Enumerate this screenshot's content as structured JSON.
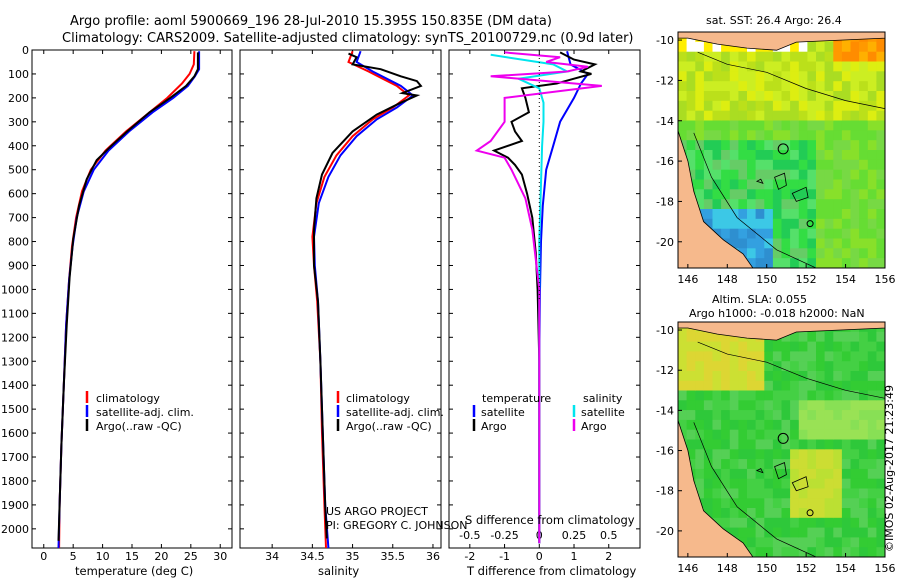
{
  "header": {
    "title_line1": "Argo profile: aoml 5900669_196 28-Jul-2010 15.395S 150.835E (DM data)",
    "title_line2": "Climatology: CARS2009. Satellite-adjusted climatology: synTS_20100729.nc (0.9d later)"
  },
  "credits": {
    "project": "US ARGO PROJECT",
    "pi": "PI: GREGORY C. JOHNSON",
    "imos": "©IMOS 02-Aug-2017 21:23:49"
  },
  "colors": {
    "climatology": "#ff0000",
    "satellite": "#0000ff",
    "argo": "#000000",
    "salinity_satellite": "#00e5ee",
    "salinity_argo": "#ee00ee",
    "land": "#f6b98c"
  },
  "chart_data": [
    {
      "type": "line",
      "name": "temperature-profile",
      "xlabel": "temperature (deg C)",
      "ylabel": "",
      "xlim": [
        -2,
        32
      ],
      "ylim": [
        2080,
        0
      ],
      "xticks": [
        "0",
        "5",
        "10",
        "15",
        "20",
        "25",
        "30"
      ],
      "xtick_values": [
        0,
        5,
        10,
        15,
        20,
        25,
        30
      ],
      "yticks": [
        "0",
        "100",
        "200",
        "300",
        "400",
        "500",
        "600",
        "700",
        "800",
        "900",
        "1000",
        "1100",
        "1200",
        "1300",
        "1400",
        "1500",
        "1600",
        "1700",
        "1800",
        "1900",
        "2000"
      ],
      "ytick_values": [
        0,
        100,
        200,
        300,
        400,
        500,
        600,
        700,
        800,
        900,
        1000,
        1100,
        1200,
        1300,
        1400,
        1500,
        1600,
        1700,
        1800,
        1900,
        2000
      ],
      "legend": [
        "climatology",
        "satellite-adj. clim.",
        "Argo(..raw -QC)"
      ],
      "series": [
        {
          "name": "climatology",
          "color": "#ff0000",
          "points": [
            [
              25.6,
              5
            ],
            [
              25.5,
              60
            ],
            [
              24.8,
              100
            ],
            [
              23.5,
              140
            ],
            [
              21.0,
              200
            ],
            [
              17.5,
              270
            ],
            [
              14.0,
              340
            ],
            [
              10.5,
              420
            ],
            [
              8.0,
              500
            ],
            [
              6.5,
              590
            ],
            [
              5.5,
              700
            ],
            [
              4.8,
              820
            ],
            [
              4.3,
              960
            ],
            [
              3.8,
              1150
            ],
            [
              3.4,
              1400
            ],
            [
              3.0,
              1650
            ],
            [
              2.7,
              1900
            ],
            [
              2.6,
              2080
            ]
          ]
        },
        {
          "name": "satellite",
          "color": "#0000ff",
          "points": [
            [
              26.4,
              5
            ],
            [
              26.4,
              80
            ],
            [
              25.7,
              110
            ],
            [
              24.5,
              150
            ],
            [
              22.0,
              200
            ],
            [
              18.5,
              260
            ],
            [
              14.5,
              340
            ],
            [
              11.0,
              420
            ],
            [
              8.5,
              500
            ],
            [
              6.8,
              590
            ],
            [
              5.6,
              700
            ],
            [
              4.9,
              820
            ],
            [
              4.3,
              960
            ],
            [
              3.8,
              1150
            ],
            [
              3.4,
              1400
            ],
            [
              3.0,
              1650
            ],
            [
              2.7,
              1900
            ],
            [
              2.5,
              2080
            ]
          ]
        },
        {
          "name": "argo",
          "color": "#000000",
          "points": [
            [
              26.2,
              10
            ],
            [
              26.2,
              80
            ],
            [
              25.6,
              110
            ],
            [
              24.2,
              150
            ],
            [
              21.5,
              200
            ],
            [
              18.0,
              260
            ],
            [
              14.2,
              340
            ],
            [
              11.5,
              400
            ],
            [
              9.0,
              460
            ],
            [
              7.3,
              540
            ],
            [
              6.0,
              650
            ],
            [
              5.0,
              790
            ],
            [
              4.4,
              950
            ],
            [
              3.9,
              1150
            ],
            [
              3.4,
              1400
            ],
            [
              3.0,
              1650
            ],
            [
              2.7,
              1900
            ],
            [
              2.5,
              2050
            ]
          ]
        }
      ]
    },
    {
      "type": "line",
      "name": "salinity-profile",
      "xlabel": "salinity",
      "xlim": [
        33.6,
        36.1
      ],
      "ylim": [
        2080,
        0
      ],
      "xticks": [
        "34",
        "34.5",
        "35",
        "35.5",
        "36"
      ],
      "xtick_values": [
        34,
        34.5,
        35,
        35.5,
        36
      ],
      "legend": [
        "climatology",
        "satellite-adj. clim.",
        "Argo(..raw -QC)"
      ],
      "series": [
        {
          "name": "climatology",
          "color": "#ff0000",
          "points": [
            [
              35.0,
              5
            ],
            [
              34.95,
              50
            ],
            [
              35.2,
              90
            ],
            [
              35.55,
              150
            ],
            [
              35.7,
              190
            ],
            [
              35.5,
              240
            ],
            [
              35.25,
              290
            ],
            [
              35.0,
              360
            ],
            [
              34.8,
              440
            ],
            [
              34.65,
              530
            ],
            [
              34.55,
              640
            ],
            [
              34.5,
              780
            ],
            [
              34.52,
              900
            ],
            [
              34.56,
              1050
            ],
            [
              34.6,
              1300
            ],
            [
              34.62,
              1600
            ],
            [
              34.65,
              1900
            ],
            [
              34.67,
              2080
            ]
          ]
        },
        {
          "name": "satellite",
          "color": "#0000ff",
          "points": [
            [
              35.1,
              5
            ],
            [
              35.05,
              50
            ],
            [
              35.25,
              90
            ],
            [
              35.6,
              150
            ],
            [
              35.75,
              190
            ],
            [
              35.55,
              240
            ],
            [
              35.3,
              290
            ],
            [
              35.05,
              360
            ],
            [
              34.85,
              440
            ],
            [
              34.7,
              530
            ],
            [
              34.58,
              640
            ],
            [
              34.52,
              780
            ],
            [
              34.53,
              900
            ],
            [
              34.57,
              1050
            ],
            [
              34.6,
              1300
            ],
            [
              34.63,
              1600
            ],
            [
              34.66,
              1900
            ],
            [
              34.7,
              2080
            ]
          ]
        },
        {
          "name": "argo",
          "color": "#000000",
          "points": [
            [
              34.95,
              15
            ],
            [
              35.05,
              30
            ],
            [
              35.0,
              60
            ],
            [
              35.35,
              80
            ],
            [
              35.6,
              110
            ],
            [
              35.8,
              130
            ],
            [
              35.85,
              150
            ],
            [
              35.62,
              180
            ],
            [
              35.8,
              190
            ],
            [
              35.6,
              220
            ],
            [
              35.3,
              270
            ],
            [
              35.0,
              340
            ],
            [
              34.75,
              430
            ],
            [
              34.62,
              520
            ],
            [
              34.55,
              620
            ],
            [
              34.52,
              750
            ],
            [
              34.52,
              900
            ],
            [
              34.57,
              1050
            ],
            [
              34.6,
              1300
            ],
            [
              34.63,
              1600
            ],
            [
              34.66,
              1900
            ],
            [
              34.68,
              2040
            ]
          ]
        }
      ]
    },
    {
      "type": "line",
      "name": "difference-profile",
      "xlabel": "T difference from climatology",
      "xlabel_top": "S difference from climatology",
      "xlim": [
        -2.6,
        2.9
      ],
      "ylim": [
        2080,
        0
      ],
      "xticks": [
        "-2",
        "-1",
        "0",
        "1",
        "2"
      ],
      "xtick_values": [
        -2,
        -1,
        0,
        1,
        2
      ],
      "sticks": [
        "-0.5",
        "-0.25",
        "0",
        "0.25",
        "0.5"
      ],
      "stick_values": [
        -0.5,
        -0.25,
        0,
        0.25,
        0.5
      ],
      "legend_temperature": "temperature",
      "legend_salinity": "salinity",
      "legend_labels": [
        "satellite",
        "Argo"
      ],
      "series": [
        {
          "name": "T satellite",
          "color": "#0000ff",
          "points": [
            [
              0.8,
              5
            ],
            [
              0.9,
              60
            ],
            [
              1.4,
              100
            ],
            [
              1.2,
              140
            ],
            [
              1.0,
              200
            ],
            [
              0.6,
              300
            ],
            [
              0.4,
              400
            ],
            [
              0.2,
              500
            ],
            [
              0.1,
              650
            ],
            [
              0.05,
              800
            ],
            [
              0.02,
              1000
            ],
            [
              0,
              1300
            ],
            [
              0,
              1700
            ],
            [
              0,
              2060
            ]
          ]
        },
        {
          "name": "T argo",
          "color": "#000000",
          "points": [
            [
              0.6,
              10
            ],
            [
              1.0,
              40
            ],
            [
              1.6,
              60
            ],
            [
              1.2,
              90
            ],
            [
              1.5,
              100
            ],
            [
              1.0,
              120
            ],
            [
              0.5,
              140
            ],
            [
              -0.5,
              160
            ],
            [
              -0.4,
              200
            ],
            [
              -0.3,
              260
            ],
            [
              -0.8,
              300
            ],
            [
              -0.7,
              340
            ],
            [
              -0.5,
              380
            ],
            [
              -1.3,
              420
            ],
            [
              -0.9,
              450
            ],
            [
              -0.7,
              480
            ],
            [
              -0.5,
              520
            ],
            [
              -0.35,
              600
            ],
            [
              -0.2,
              700
            ],
            [
              -0.1,
              850
            ],
            [
              -0.05,
              1000
            ],
            [
              0,
              1300
            ],
            [
              0,
              1700
            ],
            [
              0,
              2060
            ]
          ]
        },
        {
          "name": "S satellite",
          "color": "#00e5ee",
          "points": [
            [
              -0.35,
              20
            ],
            [
              0.1,
              60
            ],
            [
              0.2,
              90
            ],
            [
              -0.15,
              120
            ],
            [
              0.0,
              160
            ],
            [
              0.03,
              220
            ],
            [
              0.03,
              300
            ],
            [
              0.02,
              400
            ],
            [
              0.01,
              600
            ],
            [
              0,
              800
            ],
            [
              0,
              1200
            ],
            [
              0,
              1600
            ],
            [
              0,
              2060
            ]
          ]
        },
        {
          "name": "S argo",
          "color": "#ee00ee",
          "points": [
            [
              -0.25,
              10
            ],
            [
              0.15,
              30
            ],
            [
              0.05,
              50
            ],
            [
              0.35,
              70
            ],
            [
              0.2,
              90
            ],
            [
              -0.35,
              110
            ],
            [
              0.45,
              150
            ],
            [
              -0.25,
              200
            ],
            [
              -0.25,
              300
            ],
            [
              -0.35,
              380
            ],
            [
              -0.45,
              420
            ],
            [
              -0.25,
              450
            ],
            [
              -0.2,
              500
            ],
            [
              -0.1,
              620
            ],
            [
              -0.05,
              750
            ],
            [
              0,
              1000
            ],
            [
              0,
              1500
            ],
            [
              0,
              2060
            ]
          ]
        }
      ]
    },
    {
      "type": "heatmap",
      "name": "sst-map",
      "title": "sat. SST: 26.4 Argo: 26.4",
      "xlim": [
        145.5,
        156
      ],
      "ylim": [
        -21.3,
        -9.6
      ],
      "xticks": [
        "146",
        "148",
        "150",
        "152",
        "154",
        "156"
      ],
      "xtick_values": [
        146,
        148,
        150,
        152,
        154,
        156
      ],
      "yticks": [
        "-10",
        "-12",
        "-14",
        "-16",
        "-18",
        "-20"
      ],
      "ytick_values": [
        -10,
        -12,
        -14,
        -16,
        -18,
        -20
      ],
      "float_position": [
        150.835,
        -15.395
      ]
    },
    {
      "type": "heatmap",
      "name": "sla-map",
      "title_line1": "Altim. SLA: 0.055",
      "title_line2": "Argo h1000: -0.018 h2000: NaN",
      "xlim": [
        145.5,
        156
      ],
      "ylim": [
        -21.3,
        -9.6
      ],
      "xticks": [
        "146",
        "148",
        "150",
        "152",
        "154",
        "156"
      ],
      "xtick_values": [
        146,
        148,
        150,
        152,
        154,
        156
      ],
      "yticks": [
        "-10",
        "-12",
        "-14",
        "-16",
        "-18",
        "-20"
      ],
      "ytick_values": [
        -10,
        -12,
        -14,
        -16,
        -18,
        -20
      ],
      "float_position": [
        150.835,
        -15.395
      ]
    }
  ]
}
